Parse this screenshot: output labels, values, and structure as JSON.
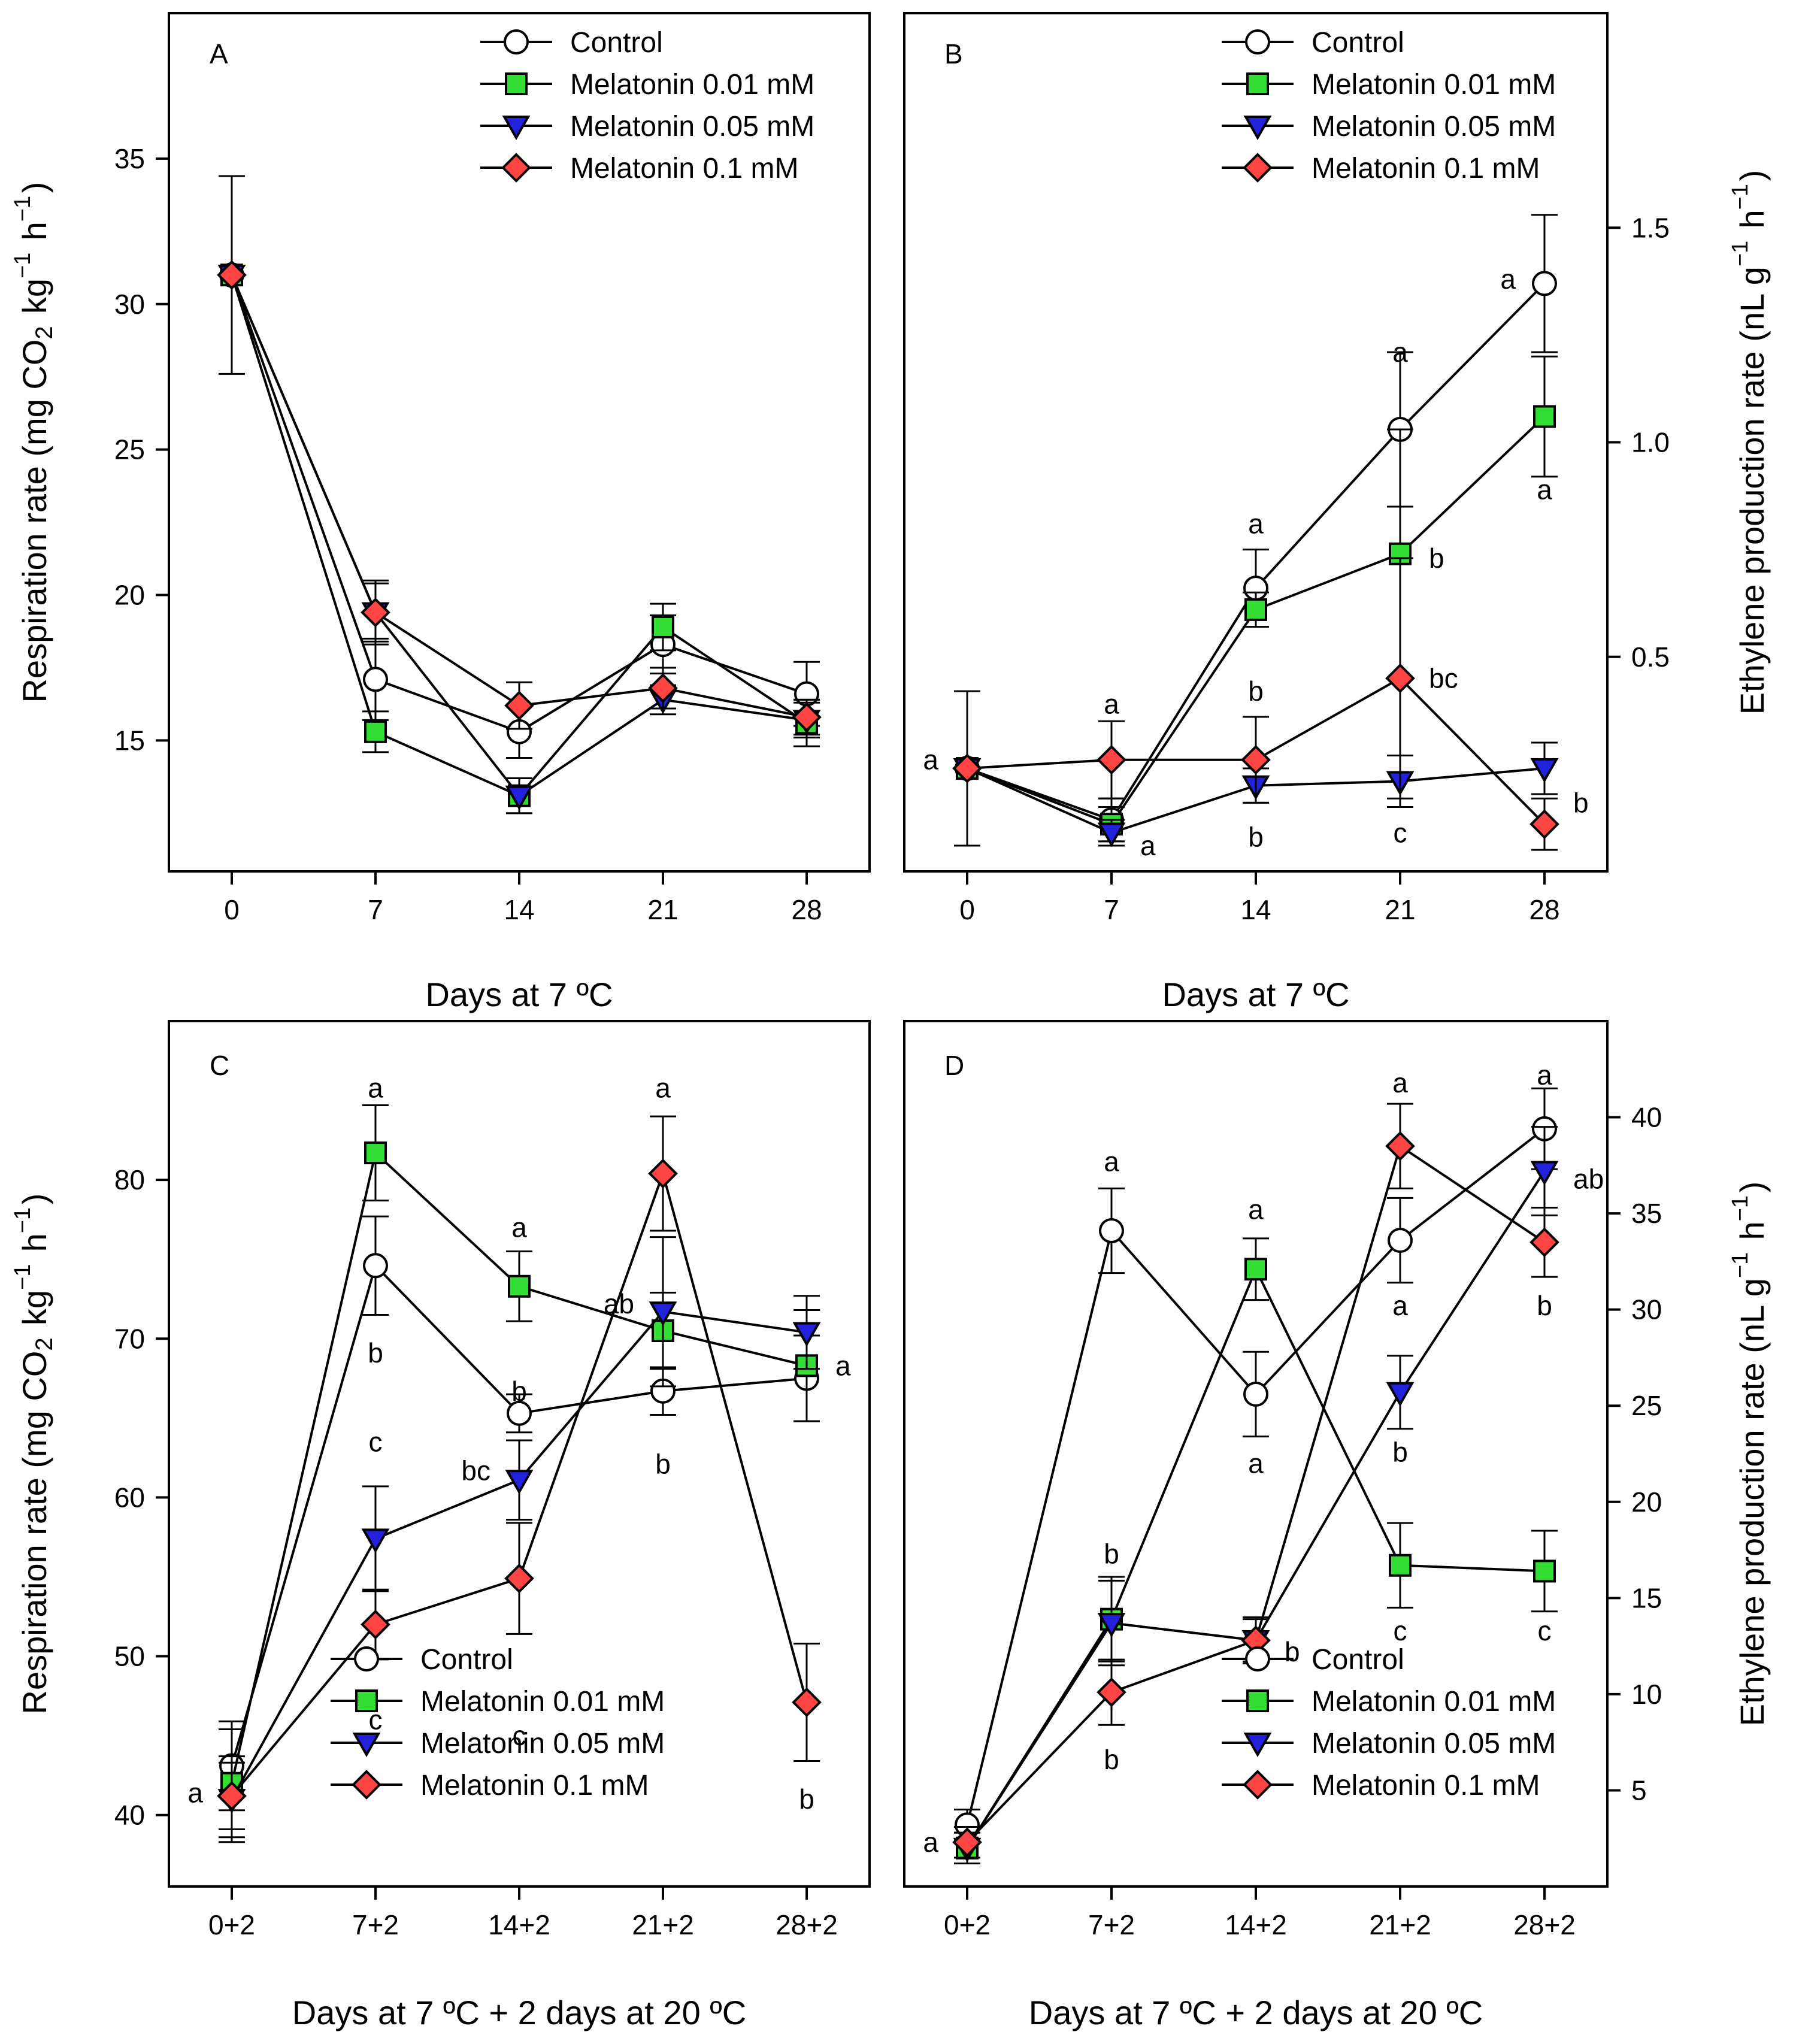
{
  "colors": {
    "control": "#ffffff",
    "mel001": "#33dd33",
    "mel005": "#2222dd",
    "mel01": "#ff4444",
    "stroke": "#000000"
  },
  "chart_data": [
    {
      "panel": "A",
      "type": "line",
      "xlabel": "Days at 7 ºC",
      "ylabel": "Respiration rate (mg CO2 kg−1 h−1)",
      "categories": [
        "0",
        "7",
        "14",
        "21",
        "28"
      ],
      "ylim": [
        10.5,
        40
      ],
      "yticks": [
        15,
        20,
        25,
        30,
        35
      ],
      "series": [
        {
          "name": "Control",
          "values": [
            31,
            17.1,
            15.3,
            18.3,
            16.6
          ],
          "errors": [
            3.4,
            1.4,
            0.9,
            1.0,
            1.1
          ]
        },
        {
          "name": "Melatonin 0.01 mM",
          "values": [
            31,
            15.3,
            13.1,
            18.9,
            15.6
          ],
          "errors": [
            0,
            0.7,
            0.6,
            0.8,
            0.8
          ]
        },
        {
          "name": "Melatonin 0.05 mM",
          "values": [
            31,
            19.4,
            13.1,
            16.4,
            15.7
          ],
          "errors": [
            0,
            1.0,
            0.6,
            0.5,
            0.6
          ]
        },
        {
          "name": "Melatonin 0.1 mM",
          "values": [
            31,
            19.4,
            16.2,
            16.8,
            15.8
          ],
          "errors": [
            0,
            1.1,
            0.8,
            0.7,
            0.6
          ]
        }
      ],
      "annotations": [],
      "legend": "top-right"
    },
    {
      "panel": "B",
      "type": "line",
      "xlabel": "Days at 7 ºC",
      "ylabel": "Ethylene production rate (nL g−1 h−1)",
      "categories": [
        "0",
        "7",
        "14",
        "21",
        "28"
      ],
      "ylim": [
        0.0,
        2.0
      ],
      "yticks": [
        0.5,
        1.0,
        1.5
      ],
      "series": [
        {
          "name": "Control",
          "values": [
            0.24,
            0.12,
            0.66,
            1.03,
            1.37
          ],
          "errors": [
            0.18,
            0.05,
            0.09,
            0.18,
            0.16
          ]
        },
        {
          "name": "Melatonin 0.01 mM",
          "values": [
            0.24,
            0.11,
            0.61,
            0.74,
            1.06
          ],
          "errors": [
            0,
            0.04,
            0.04,
            0.29,
            0.14
          ]
        },
        {
          "name": "Melatonin 0.05 mM",
          "values": [
            0.24,
            0.09,
            0.2,
            0.21,
            0.24
          ],
          "errors": [
            0,
            0.03,
            0.04,
            0.06,
            0.06
          ]
        },
        {
          "name": "Melatonin 0.1 mM",
          "values": [
            0.24,
            0.26,
            0.26,
            0.45,
            0.11
          ],
          "errors": [
            0,
            0.09,
            0.1,
            0.28,
            0.06
          ]
        }
      ],
      "annotations": [
        {
          "text": "a",
          "x": 0,
          "y": 0.26,
          "side": "left"
        },
        {
          "text": "a",
          "x": 1,
          "y": 0.39
        },
        {
          "text": "a",
          "x": 1,
          "y": 0.06,
          "side": "right"
        },
        {
          "text": "a",
          "x": 2,
          "y": 0.81
        },
        {
          "text": "b",
          "x": 2,
          "y": 0.42
        },
        {
          "text": "b",
          "x": 2,
          "y": 0.08
        },
        {
          "text": "a",
          "x": 3,
          "y": 1.21
        },
        {
          "text": "b",
          "x": 3,
          "y": 0.73,
          "side": "right"
        },
        {
          "text": "bc",
          "x": 3,
          "y": 0.45,
          "side": "right"
        },
        {
          "text": "c",
          "x": 3,
          "y": 0.09
        },
        {
          "text": "a",
          "x": 4,
          "y": 1.38,
          "side": "left"
        },
        {
          "text": "a",
          "x": 4,
          "y": 0.89
        },
        {
          "text": "b",
          "x": 4,
          "y": 0.16,
          "side": "right"
        }
      ],
      "legend": "top-right"
    },
    {
      "panel": "C",
      "type": "line",
      "xlabel": "Days at 7 ºC + 2 days at 20 ºC",
      "ylabel": "Respiration rate (mg CO2 kg−1 h−1)",
      "categories": [
        "0+2",
        "7+2",
        "14+2",
        "21+2",
        "28+2"
      ],
      "ylim": [
        35.5,
        90
      ],
      "yticks": [
        40,
        50,
        60,
        70,
        80
      ],
      "series": [
        {
          "name": "Control",
          "values": [
            43.1,
            74.6,
            65.3,
            66.7,
            67.5
          ],
          "errors": [
            2.8,
            3.1,
            1.2,
            1.5,
            2.7
          ]
        },
        {
          "name": "Melatonin 0.01 mM",
          "values": [
            42.0,
            81.7,
            73.3,
            70.5,
            68.3
          ],
          "errors": [
            3.4,
            3.0,
            2.2,
            2.4,
            3.5
          ]
        },
        {
          "name": "Melatonin 0.05 mM",
          "values": [
            41.0,
            57.4,
            61.1,
            71.7,
            70.4
          ],
          "errors": [
            2.7,
            3.3,
            2.5,
            4.7,
            2.3
          ]
        },
        {
          "name": "Melatonin 0.1 mM",
          "values": [
            41.2,
            52.0,
            54.9,
            80.4,
            47.1
          ],
          "errors": [
            2.1,
            2.2,
            3.5,
            3.6,
            3.7
          ]
        }
      ],
      "annotations": [
        {
          "text": "a",
          "x": 0,
          "y": 41.4,
          "side": "left"
        },
        {
          "text": "a",
          "x": 1,
          "y": 85.8
        },
        {
          "text": "b",
          "x": 1,
          "y": 69.1
        },
        {
          "text": "c",
          "x": 1,
          "y": 63.5
        },
        {
          "text": "c",
          "x": 1,
          "y": 46.0
        },
        {
          "text": "a",
          "x": 2,
          "y": 77.0
        },
        {
          "text": "b",
          "x": 2,
          "y": 66.7
        },
        {
          "text": "bc",
          "x": 2,
          "y": 61.7,
          "side": "left"
        },
        {
          "text": "c",
          "x": 2,
          "y": 45.0
        },
        {
          "text": "a",
          "x": 3,
          "y": 85.8
        },
        {
          "text": "ab",
          "x": 3,
          "y": 72.2,
          "side": "left"
        },
        {
          "text": "b",
          "x": 3,
          "y": 62.1
        },
        {
          "text": "a",
          "x": 4,
          "y": 68.3,
          "side": "right"
        },
        {
          "text": "b",
          "x": 4,
          "y": 41.0
        }
      ],
      "legend": "bottom-left"
    },
    {
      "panel": "D",
      "type": "line",
      "xlabel": "Days at 7 ºC + 2 days at 20 ºC",
      "ylabel": "Ethylene production rate (nL g−1 h−1)",
      "categories": [
        "0+2",
        "7+2",
        "14+2",
        "21+2",
        "28+2"
      ],
      "ylim": [
        0,
        45
      ],
      "yticks": [
        5,
        10,
        15,
        20,
        25,
        30,
        35,
        40
      ],
      "series": [
        {
          "name": "Control",
          "values": [
            3.2,
            34.1,
            25.6,
            33.6,
            39.4
          ],
          "errors": [
            0.8,
            2.2,
            2.2,
            2.2,
            2.1
          ]
        },
        {
          "name": "Melatonin 0.01 mM",
          "values": [
            2.0,
            13.9,
            32.1,
            16.7,
            16.4
          ],
          "errors": [
            0.8,
            2.2,
            1.6,
            2.2,
            2.1
          ]
        },
        {
          "name": "Melatonin 0.05 mM",
          "values": [
            2.0,
            13.7,
            12.8,
            25.7,
            37.2
          ],
          "errors": [
            0.8,
            2.2,
            1.1,
            1.9,
            2.3
          ]
        },
        {
          "name": "Melatonin 0.1 mM",
          "values": [
            2.3,
            10.1,
            12.8,
            38.5,
            33.5
          ],
          "errors": [
            0.8,
            1.7,
            1.2,
            2.2,
            1.8
          ]
        }
      ],
      "annotations": [
        {
          "text": "a",
          "x": 0,
          "y": 2.3,
          "side": "left"
        },
        {
          "text": "a",
          "x": 1,
          "y": 37.7
        },
        {
          "text": "b",
          "x": 1,
          "y": 17.3
        },
        {
          "text": "b",
          "x": 1,
          "y": 6.6
        },
        {
          "text": "a",
          "x": 2,
          "y": 35.2
        },
        {
          "text": "a",
          "x": 2,
          "y": 22.0
        },
        {
          "text": "b",
          "x": 2,
          "y": 12.2,
          "side": "right"
        },
        {
          "text": "a",
          "x": 3,
          "y": 41.8
        },
        {
          "text": "a",
          "x": 3,
          "y": 30.2
        },
        {
          "text": "b",
          "x": 3,
          "y": 22.6
        },
        {
          "text": "c",
          "x": 3,
          "y": 13.3
        },
        {
          "text": "a",
          "x": 4,
          "y": 42.2
        },
        {
          "text": "ab",
          "x": 4,
          "y": 36.8,
          "side": "right"
        },
        {
          "text": "b",
          "x": 4,
          "y": 30.2
        },
        {
          "text": "c",
          "x": 4,
          "y": 13.3
        }
      ],
      "legend": "bottom-right"
    }
  ]
}
